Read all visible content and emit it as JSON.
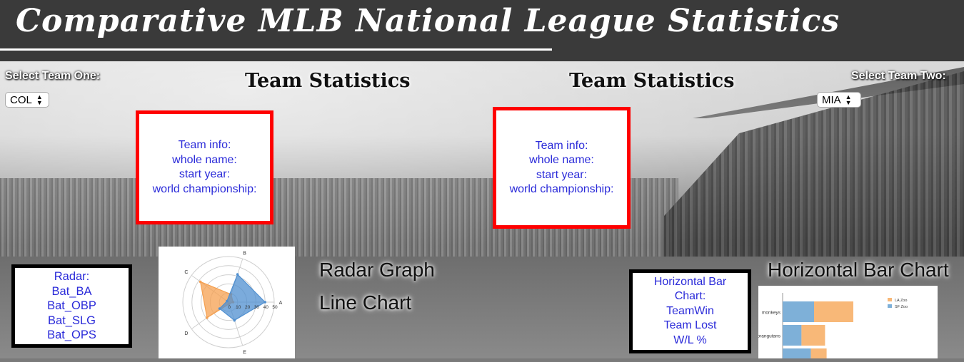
{
  "header": {
    "title": "Comparative MLB National League Statistics"
  },
  "team_one": {
    "select_label": "Select Team One:",
    "selected": "COL",
    "heading": "Team Statistics",
    "info_lines": [
      "Team info:",
      "whole name:",
      "start year:",
      "world championship:"
    ]
  },
  "team_two": {
    "select_label": "Select Team Two:",
    "selected": "MIA",
    "heading": "Team Statistics",
    "info_lines": [
      "Team info:",
      "whole name:",
      "start year:",
      "world championship:"
    ]
  },
  "radar_box": {
    "lines": [
      "Radar:",
      "Bat_BA",
      "Bat_OBP",
      "Bat_SLG",
      "Bat_OPS"
    ]
  },
  "radar_labels": {
    "graph": "Radar Graph",
    "line": "Line Chart"
  },
  "hbar_box": {
    "lines": [
      "Horizontal Bar",
      "Chart:",
      "TeamWin",
      "Team Lost",
      "W/L %"
    ]
  },
  "hbar_label": "Horizontal Bar Chart",
  "chart_data": [
    {
      "type": "radar",
      "axes": [
        "A",
        "B",
        "C",
        "D",
        "E"
      ],
      "rticks": [
        "0",
        "10",
        "20",
        "30",
        "40",
        "50"
      ],
      "rmax": 50,
      "series": [
        {
          "values": [
            5,
            9,
            38,
            29,
            2
          ],
          "color": "#f5a050"
        },
        {
          "values": [
            40,
            32,
            2,
            12,
            21
          ],
          "color": "#4f8fd0"
        }
      ]
    },
    {
      "type": "bar",
      "orientation": "horizontal",
      "stacked": true,
      "categories": [
        "monkeys",
        "orangutans",
        ""
      ],
      "legend": [
        "LA Zoo",
        "SF Zoo"
      ],
      "colors": {
        "LA Zoo": "#f8b878",
        "SF Zoo": "#7eb0d8"
      },
      "series": [
        {
          "name": "SF Zoo",
          "values": [
            20,
            12,
            18
          ]
        },
        {
          "name": "LA Zoo",
          "values": [
            25,
            15,
            10
          ]
        }
      ]
    }
  ]
}
